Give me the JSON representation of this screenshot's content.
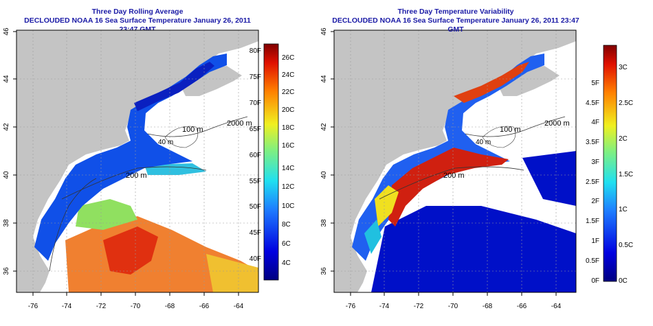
{
  "left_panel": {
    "title": "Three Day Rolling Average",
    "subtitle": "DECLOUDED NOAA 16 Sea Surface Temperature January 26, 2011 23:47 GMT",
    "x_ticks": [
      "-76",
      "-74",
      "-72",
      "-70",
      "-68",
      "-66",
      "-64"
    ],
    "y_ticks": [
      "36",
      "38",
      "40",
      "42",
      "44",
      "46"
    ],
    "contour_labels": [
      "100 m",
      "2000 m",
      "200 m",
      "40 m"
    ],
    "colorbar_f": [
      "80F",
      "75F",
      "70F",
      "65F",
      "60F",
      "55F",
      "50F",
      "45F",
      "40F"
    ],
    "colorbar_c": [
      "26C",
      "24C",
      "22C",
      "20C",
      "18C",
      "16C",
      "14C",
      "12C",
      "10C",
      "8C",
      "6C",
      "4C"
    ]
  },
  "right_panel": {
    "title": "Three Day Temperature Variability",
    "subtitle": "DECLOUDED NOAA 16 Sea Surface Temperature January 26, 2011 23:47 GMT",
    "x_ticks": [
      "-76",
      "-74",
      "-72",
      "-70",
      "-68",
      "-66",
      "-64"
    ],
    "y_ticks": [
      "36",
      "38",
      "40",
      "42",
      "44",
      "46"
    ],
    "contour_labels": [
      "100 m",
      "2000 m",
      "200 m",
      "40 m"
    ],
    "colorbar_f": [
      "5F",
      "4.5F",
      "4F",
      "3.5F",
      "3F",
      "2.5F",
      "2F",
      "1.5F",
      "1F",
      "0.5F",
      "0F"
    ],
    "colorbar_c": [
      "3C",
      "2.5C",
      "2C",
      "1.5C",
      "1C",
      "0.5C",
      "0C"
    ]
  },
  "colors": {
    "title": "#1a1aa6",
    "land": "#c4c4c4",
    "ocean_nodata": "#ffffff",
    "grid": "#9a9a9a"
  }
}
